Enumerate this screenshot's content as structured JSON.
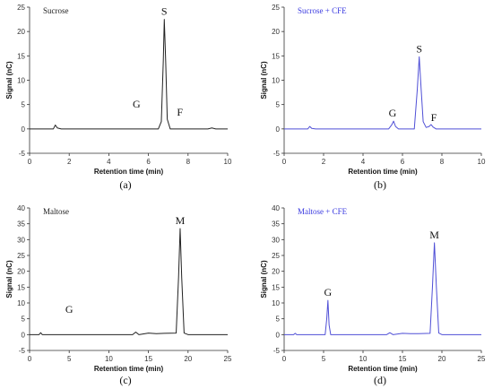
{
  "chart_data": [
    {
      "type": "line",
      "title": "Sucrose",
      "caption": "(a)",
      "xlabel": "Retention time (min)",
      "ylabel": "Signal (nC)",
      "xlim": [
        0,
        10
      ],
      "ylim": [
        -5,
        25
      ],
      "xticks": [
        0,
        2,
        4,
        6,
        8,
        10
      ],
      "yticks": [
        -5,
        0,
        5,
        10,
        15,
        20,
        25
      ],
      "line_color": "#222222",
      "title_color": "#222222",
      "x": [
        0,
        1.2,
        1.3,
        1.4,
        1.6,
        3,
        5,
        6.5,
        6.65,
        6.75,
        6.8,
        6.87,
        6.95,
        7.1,
        7.4,
        8,
        9,
        9.2,
        9.4,
        10
      ],
      "y": [
        0,
        0,
        0.8,
        0.2,
        0,
        0,
        0,
        0,
        1.5,
        14,
        22.5,
        14,
        2,
        0,
        0,
        0,
        0,
        0.2,
        0,
        0
      ],
      "peak_labels": [
        {
          "text": "S",
          "x": 6.8,
          "y": 22.5
        },
        {
          "text": "G",
          "x": 5.4,
          "y": 3.5
        },
        {
          "text": "F",
          "x": 7.5,
          "y": 2.0
        }
      ]
    },
    {
      "type": "line",
      "title": "Sucrose + CFE",
      "caption": "(b)",
      "xlabel": "Retention time (min)",
      "ylabel": "Signal (nC)",
      "xlim": [
        0,
        10
      ],
      "ylim": [
        -5,
        25
      ],
      "xticks": [
        0,
        2,
        4,
        6,
        8,
        10
      ],
      "yticks": [
        -5,
        0,
        5,
        10,
        15,
        20,
        25
      ],
      "line_color": "#4f4fd6",
      "title_color": "#3a3ae0",
      "x": [
        0,
        1.2,
        1.3,
        1.4,
        1.6,
        5.3,
        5.45,
        5.55,
        5.65,
        5.8,
        6.6,
        6.75,
        6.85,
        6.95,
        7.05,
        7.2,
        7.35,
        7.45,
        7.55,
        7.7,
        8,
        10
      ],
      "y": [
        0,
        0,
        0.5,
        0.1,
        0,
        0,
        0.8,
        1.6,
        0.5,
        0,
        0,
        8,
        14.8,
        8,
        1.5,
        0.3,
        0.5,
        0.9,
        0.4,
        0,
        0,
        0
      ],
      "peak_labels": [
        {
          "text": "S",
          "x": 6.85,
          "y": 14.8
        },
        {
          "text": "G",
          "x": 5.5,
          "y": 1.6
        },
        {
          "text": "F",
          "x": 7.5,
          "y": 0.9
        }
      ]
    },
    {
      "type": "line",
      "title": "Maltose",
      "caption": "(c)",
      "xlabel": "Retention time (min)",
      "ylabel": "Signal (nC)",
      "xlim": [
        0,
        25
      ],
      "ylim": [
        -5,
        40
      ],
      "xticks": [
        0,
        5,
        10,
        15,
        20,
        25
      ],
      "yticks": [
        -5,
        0,
        5,
        10,
        15,
        20,
        25,
        30,
        35,
        40
      ],
      "line_color": "#222222",
      "title_color": "#222222",
      "x": [
        0,
        1.2,
        1.4,
        1.6,
        13,
        13.4,
        13.8,
        15,
        16,
        17,
        18.5,
        18.8,
        19,
        19.2,
        19.5,
        20,
        25
      ],
      "y": [
        0,
        0,
        0.6,
        0,
        0,
        0.8,
        0,
        0.5,
        0.3,
        0.4,
        0.5,
        18,
        33.5,
        18,
        0.5,
        0,
        0
      ],
      "peak_labels": [
        {
          "text": "M",
          "x": 19,
          "y": 33.5
        },
        {
          "text": "G",
          "x": 5,
          "y": 5.5
        }
      ]
    },
    {
      "type": "line",
      "title": "Maltose + CFE",
      "caption": "(d)",
      "xlabel": "Retention time (min)",
      "ylabel": "Signal (nC)",
      "xlim": [
        0,
        25
      ],
      "ylim": [
        -5,
        40
      ],
      "xticks": [
        0,
        5,
        10,
        15,
        20,
        25
      ],
      "yticks": [
        -5,
        0,
        5,
        10,
        15,
        20,
        25,
        30,
        35,
        40
      ],
      "line_color": "#4f4fd6",
      "title_color": "#3a3ae0",
      "x": [
        0,
        1.2,
        1.4,
        1.6,
        5.2,
        5.4,
        5.55,
        5.7,
        5.9,
        13,
        13.4,
        13.8,
        15,
        16,
        17,
        18.5,
        18.8,
        19.05,
        19.3,
        19.6,
        20,
        25
      ],
      "y": [
        0,
        0,
        0.4,
        0,
        0,
        5,
        10.8,
        3,
        0,
        0,
        0.6,
        0,
        0.4,
        0.3,
        0.3,
        0.4,
        15,
        29,
        15,
        0.5,
        0,
        0
      ],
      "peak_labels": [
        {
          "text": "M",
          "x": 19.05,
          "y": 29
        },
        {
          "text": "G",
          "x": 5.55,
          "y": 10.8
        }
      ]
    }
  ]
}
